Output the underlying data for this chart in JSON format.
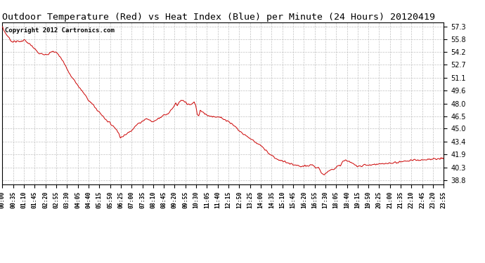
{
  "title": "Outdoor Temperature (Red) vs Heat Index (Blue) per Minute (24 Hours) 20120419",
  "copyright_text": "Copyright 2012 Cartronics.com",
  "y_ticks": [
    38.8,
    40.3,
    41.9,
    43.4,
    45.0,
    46.5,
    48.0,
    49.6,
    51.1,
    52.7,
    54.2,
    55.8,
    57.3
  ],
  "ylim": [
    38.3,
    57.8
  ],
  "xlim": [
    0,
    1439
  ],
  "x_tick_labels": [
    "00:00",
    "00:35",
    "01:10",
    "01:45",
    "02:20",
    "02:55",
    "03:30",
    "04:05",
    "04:40",
    "05:15",
    "05:50",
    "06:25",
    "07:00",
    "07:35",
    "08:10",
    "08:45",
    "09:20",
    "09:55",
    "10:30",
    "11:05",
    "11:40",
    "12:15",
    "12:50",
    "13:25",
    "14:00",
    "14:35",
    "15:10",
    "15:45",
    "16:20",
    "16:55",
    "17:30",
    "18:05",
    "18:40",
    "19:15",
    "19:50",
    "20:25",
    "21:00",
    "21:35",
    "22:10",
    "22:45",
    "23:20",
    "23:55"
  ],
  "line_color": "#cc0000",
  "grid_color": "#bbbbbb",
  "background_color": "#ffffff",
  "title_fontsize": 9.5,
  "copyright_fontsize": 6.5,
  "tick_label_fontsize": 5.8,
  "ytick_label_fontsize": 7
}
